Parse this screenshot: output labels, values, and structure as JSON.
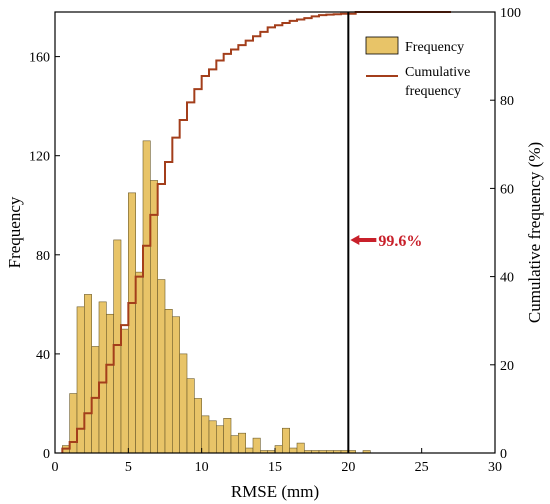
{
  "chart_data": {
    "type": "bar",
    "xlabel": "RMSE (mm)",
    "ylabel": "Frequency",
    "y2label": "Cumulative frequency (%)",
    "xlim": [
      0,
      30
    ],
    "ylim": [
      0,
      178
    ],
    "y2lim": [
      0,
      100
    ],
    "x_ticks": [
      0,
      5,
      10,
      15,
      20,
      25,
      30
    ],
    "y_ticks": [
      0,
      40,
      80,
      120,
      160
    ],
    "y2_ticks": [
      0,
      20,
      40,
      60,
      80,
      100
    ],
    "grid": false,
    "legend_position": "top-right",
    "bin_width": 0.5,
    "bin_starts": [
      0.5,
      1,
      1.5,
      2,
      2.5,
      3,
      3.5,
      4,
      4.5,
      5,
      5.5,
      6,
      6.5,
      7,
      7.5,
      8,
      8.5,
      9,
      9.5,
      10,
      10.5,
      11,
      11.5,
      12,
      12.5,
      13,
      13.5,
      14,
      14.5,
      15,
      15.5,
      16,
      16.5,
      17,
      17.5,
      18,
      18.5,
      19,
      19.5,
      20,
      20.5,
      21,
      21.5,
      22,
      22.5,
      23,
      23.5,
      24
    ],
    "series": [
      {
        "name": "Frequency",
        "type": "bar",
        "color": "#E8C468",
        "values": [
          3,
          24,
          59,
          64,
          43,
          61,
          56,
          86,
          50,
          105,
          73,
          126,
          110,
          70,
          58,
          55,
          40,
          30,
          22,
          15,
          13,
          11,
          14,
          7,
          8,
          2,
          6,
          1,
          1,
          3,
          10,
          2,
          4,
          1,
          1,
          1,
          1,
          1,
          1,
          1,
          0,
          1,
          0,
          0,
          0,
          0,
          0,
          0
        ]
      },
      {
        "name": "Cumulative frequency",
        "type": "line",
        "color": "#A33E1B",
        "x": [
          0.5,
          1,
          1.5,
          2,
          2.5,
          3,
          3.5,
          4,
          4.5,
          5,
          5.5,
          6,
          6.5,
          7,
          7.5,
          8,
          8.5,
          9,
          9.5,
          10,
          10.5,
          11,
          11.5,
          12,
          12.5,
          13,
          13.5,
          14,
          14.5,
          15,
          15.5,
          16,
          16.5,
          17,
          17.5,
          18,
          18.5,
          19,
          19.5,
          20,
          20.5,
          24,
          27
        ],
        "values": [
          1,
          2.5,
          5.5,
          9,
          12.5,
          16,
          20,
          24.5,
          29,
          34,
          40,
          47,
          54,
          61,
          66,
          71.5,
          75.5,
          79.5,
          82.5,
          85.5,
          87,
          89,
          90.5,
          91.5,
          92.5,
          93.5,
          94.5,
          95.5,
          96.5,
          97,
          97.5,
          98,
          98.3,
          98.6,
          99,
          99.3,
          99.4,
          99.5,
          99.6,
          99.6,
          100,
          100,
          100
        ]
      }
    ],
    "reference_line_x": 20,
    "annotation": {
      "text": "99.6%",
      "color": "#C8202A"
    }
  }
}
